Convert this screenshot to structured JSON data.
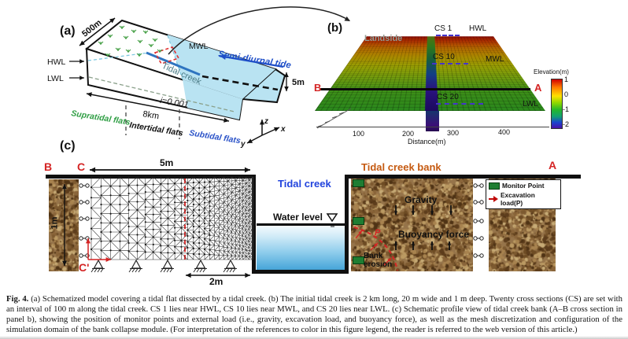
{
  "colors": {
    "water_light": "#b9e3f2",
    "creek_blue": "#2e74c0",
    "tide_blue": "#1f4fc8",
    "supratidal_green": "#2f9e44",
    "subtidal_blue": "#2a52c8",
    "label_red": "#d42424",
    "bank_orange": "#c55a11",
    "soil_brown": "#96744a",
    "monitor_green": "#1e7d32"
  },
  "panel_a": {
    "label": "(a)",
    "width_500m": "500m",
    "hwl": "HWL",
    "lwl": "LWL",
    "mwl": "MWL",
    "semi_diurnal_tide": "Semi-diurnal tide",
    "tidal_creek": "Tidal creek",
    "depth_5m": "5m",
    "slope": "i=0.001",
    "length_8km": "8km",
    "supratidal_flats": "Supratidal flats",
    "intertidal_flats": "Intertidal flats",
    "subtidal_flats": "Subtidal flats",
    "axis_z": "z",
    "axis_x": "x",
    "axis_y": "y",
    "panel_c_label": "(c)"
  },
  "panel_b": {
    "label": "(b)",
    "landside": "Landside",
    "cs_1": "CS 1",
    "cs_10": "CS 10",
    "cs_20": "CS 20",
    "hwl": "HWL",
    "mwl": "MWL",
    "lwl": "LWL",
    "end_b": "B",
    "end_a": "A",
    "x_axis_label": "Distance(m)",
    "x_ticks": [
      "100",
      "200",
      "300",
      "400"
    ],
    "colorbar_title": "Elevation(m)",
    "colorbar_ticks": [
      "1",
      "0",
      "-1",
      "-2"
    ]
  },
  "panel_c": {
    "end_b": "B",
    "corner_c": "C",
    "corner_c_prime": "C'",
    "end_a": "A",
    "width_5m": "5m",
    "height_1m": "1m",
    "toe_2m": "2m",
    "tidal_creek": "Tidal creek",
    "water_level": "Water level",
    "bank_title": "Tidal creek bank",
    "gravity": "Gravity",
    "buoyancy_force": "Buoyancy force",
    "bank_erosion": "Bank erosion",
    "load_p": "P",
    "legend": {
      "monitor_point": "Monitor Point",
      "excavation_load": "Excavation load(P)"
    }
  },
  "caption": {
    "tag": "Fig. 4.",
    "text": "(a) Schematized model covering a tidal flat dissected by a tidal creek. (b) The initial tidal creek is 2 km long, 20 m wide and 1 m deep. Twenty cross sections (CS) are set with an interval of 100 m along the tidal creek. CS 1 lies near HWL, CS 10 lies near MWL, and CS 20 lies near LWL. (c) Schematic profile view of tidal creek bank (A–B cross section in panel b), showing the position of monitor points and external load (i.e., gravity, excavation load, and buoyancy force), as well as the mesh discretization and configuration of the simulation domain of the bank collapse module. (For interpretation of the references to color in this figure legend, the reader is referred to the web version of this article.)"
  }
}
